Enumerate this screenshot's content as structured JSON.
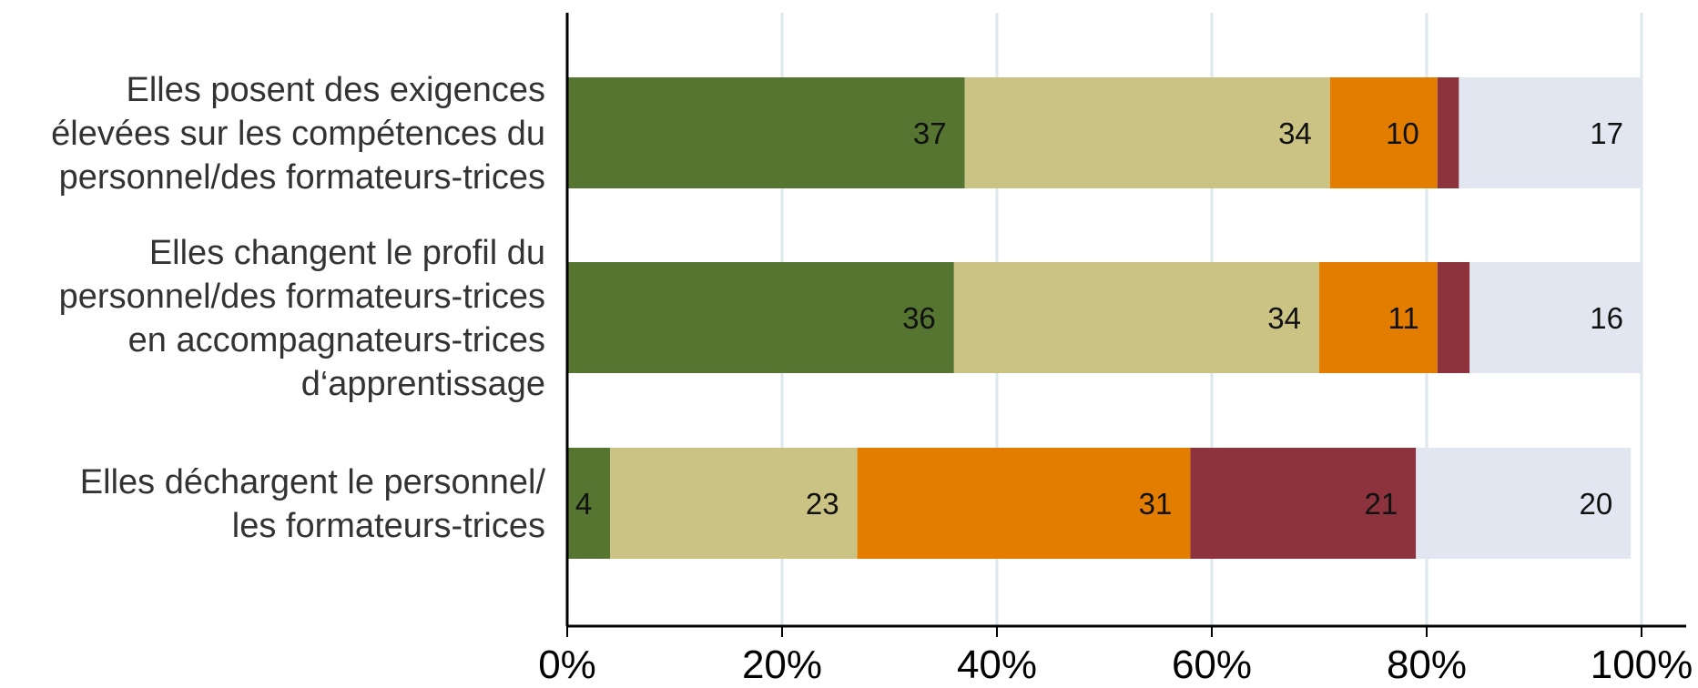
{
  "chart_data": {
    "type": "bar",
    "orientation": "horizontal",
    "stacked": "percent",
    "categories": [
      [
        "Elles posent des exigences",
        "élevées sur les compétences du",
        "personnel/des formateurs-trices"
      ],
      [
        "Elles changent le profil du",
        "personnel/des formateurs-trices",
        "en accompagnateurs-trices",
        "d‘apprentissage"
      ],
      [
        "Elles déchargent le personnel/",
        "les formateurs-trices"
      ]
    ],
    "series": [
      {
        "color": "#557530",
        "values": [
          37,
          36,
          4
        ],
        "labels": [
          "37",
          "36",
          "4"
        ]
      },
      {
        "color": "#CAC383",
        "values": [
          34,
          34,
          23
        ],
        "labels": [
          "34",
          "34",
          "23"
        ]
      },
      {
        "color": "#E27D00",
        "values": [
          10,
          11,
          31
        ],
        "labels": [
          "10",
          "11",
          "31"
        ]
      },
      {
        "color": "#8C333D",
        "values": [
          2,
          3,
          21
        ],
        "labels": [
          "",
          "",
          "21"
        ]
      },
      {
        "color": "#E2E6F0",
        "values": [
          17,
          16,
          20
        ],
        "labels": [
          "17",
          "16",
          "20"
        ]
      }
    ],
    "xlim": [
      0,
      100
    ],
    "xticks": [
      "0%",
      "20%",
      "40%",
      "60%",
      "80%",
      "100%"
    ],
    "grid": true,
    "legend": "none",
    "title": "",
    "xlabel": "",
    "ylabel": ""
  }
}
